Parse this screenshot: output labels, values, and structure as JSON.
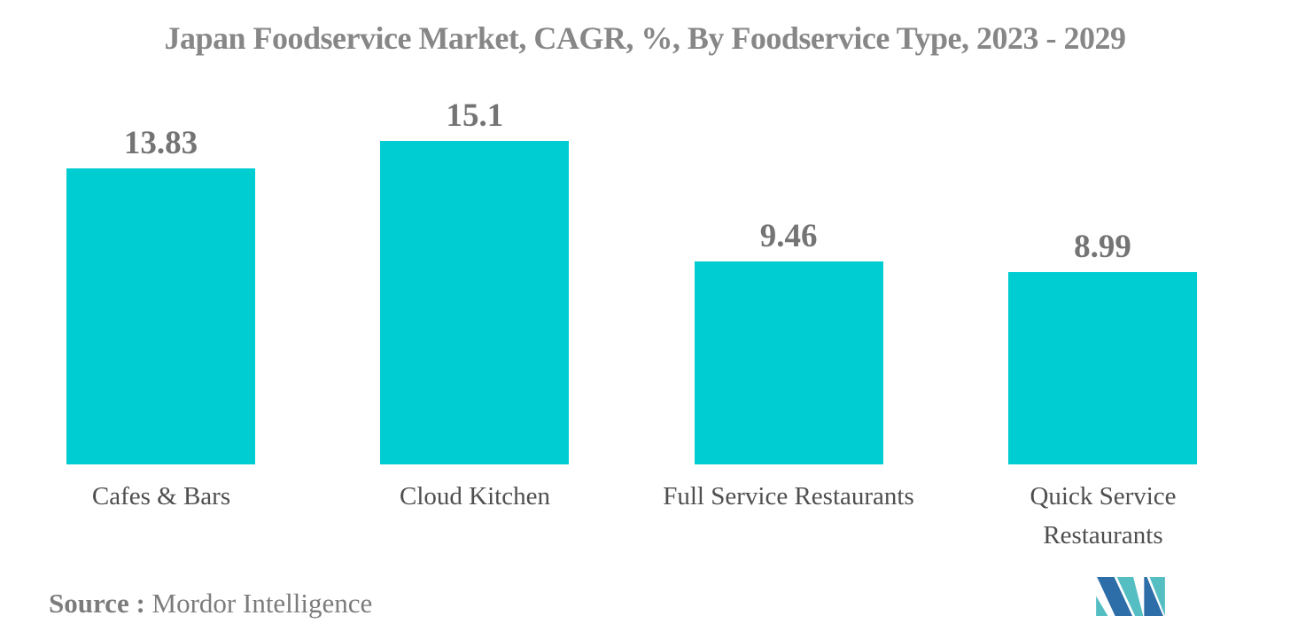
{
  "chart_data": {
    "type": "bar",
    "title": "Japan Foodservice Market, CAGR, %, By Foodservice Type, 2023 - 2029",
    "categories": [
      "Cafes & Bars",
      "Cloud Kitchen",
      "Full Service Restaurants",
      "Quick Service Restaurants"
    ],
    "values": [
      13.83,
      15.1,
      9.46,
      8.99
    ],
    "ylabel": "CAGR, %",
    "xlabel": "",
    "ylim": [
      0,
      15.1
    ],
    "grid": false,
    "legend": false,
    "orientation": "vertical",
    "bar_color": "#00CDD1",
    "value_label_color": "#747474",
    "title_color": "#878787",
    "category_label_color": "#4f4f4f"
  },
  "footer": {
    "source_label": "Source :",
    "source_value": "Mordor Intelligence",
    "logo_name": "mordor-intelligence-logo",
    "logo_colors": {
      "teal": "#55BEC3",
      "blue": "#2D6DA8"
    }
  }
}
